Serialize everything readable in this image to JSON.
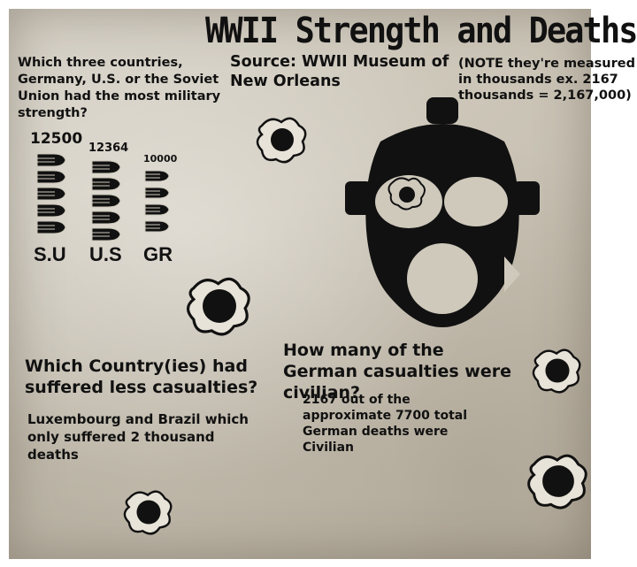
{
  "title": "WWII Strength and Deaths",
  "question_strength": "Which three countries, Germany, U.S. or the Soviet Union had the most military strength?",
  "source": "Source: WWII Museum of New Orleans",
  "note": "(NOTE they're measured in thousands ex. 2167 thousands = 2,167,000)",
  "strength": {
    "items": [
      {
        "value": "12500",
        "label": "S.U",
        "bullets": 5
      },
      {
        "value": "12364",
        "label": "U.S",
        "bullets": 5
      },
      {
        "value": "10000",
        "label": "GR",
        "bullets": 4
      }
    ]
  },
  "question_casualties": "Which Country(ies) had suffered less casualties?",
  "answer_casualties": "Luxembourg and Brazil which only suffered 2 thousand deaths",
  "question_civilian": "How many of the German casualties were civilian?",
  "answer_civilian": "2167 out of the approximate 7700 total German deaths were Civilian",
  "icons": [
    "gas-mask-icon",
    "bullet-icon",
    "bullet-hole-icon"
  ],
  "colors": {
    "ink": "#111111",
    "paper": "#cfc9bc"
  }
}
